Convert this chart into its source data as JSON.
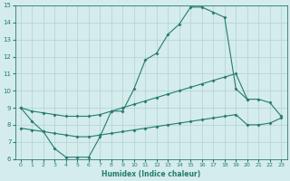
{
  "xlabel": "Humidex (Indice chaleur)",
  "s1x": [
    0,
    1,
    2,
    3,
    4,
    5,
    6,
    7,
    8,
    9,
    10,
    11,
    12,
    13,
    14,
    15,
    16,
    17,
    18,
    19,
    20
  ],
  "s1y": [
    9.0,
    8.2,
    7.6,
    6.6,
    6.1,
    6.1,
    6.1,
    7.3,
    8.8,
    8.8,
    10.1,
    11.8,
    12.2,
    13.3,
    13.9,
    14.9,
    14.9,
    14.6,
    14.3,
    10.1,
    9.5
  ],
  "s2x": [
    0,
    1,
    2,
    3,
    4,
    5,
    6,
    7,
    8,
    9,
    10,
    11,
    12,
    13,
    14,
    15,
    16,
    17,
    18,
    19,
    20,
    21,
    22,
    23
  ],
  "s2y": [
    9.0,
    8.8,
    8.7,
    8.6,
    8.5,
    8.5,
    8.5,
    8.6,
    8.8,
    9.0,
    9.2,
    9.4,
    9.6,
    9.8,
    10.0,
    10.2,
    10.4,
    10.6,
    10.8,
    11.0,
    9.5,
    9.5,
    9.3,
    8.5
  ],
  "s3x": [
    0,
    1,
    2,
    3,
    4,
    5,
    6,
    7,
    8,
    9,
    10,
    11,
    12,
    13,
    14,
    15,
    16,
    17,
    18,
    19,
    20,
    21,
    22,
    23
  ],
  "s3y": [
    7.8,
    7.7,
    7.6,
    7.5,
    7.4,
    7.3,
    7.3,
    7.4,
    7.5,
    7.6,
    7.7,
    7.8,
    7.9,
    8.0,
    8.1,
    8.2,
    8.3,
    8.4,
    8.5,
    8.6,
    8.0,
    8.0,
    8.1,
    8.4
  ],
  "color": "#267b6e",
  "bg_color": "#d4ecec",
  "grid_color": "#b2d0d0",
  "ylim": [
    6,
    15
  ],
  "xlim_min": -0.5,
  "xlim_max": 23.5,
  "yticks": [
    6,
    7,
    8,
    9,
    10,
    11,
    12,
    13,
    14,
    15
  ],
  "xticks": [
    0,
    1,
    2,
    3,
    4,
    5,
    6,
    7,
    8,
    9,
    10,
    11,
    12,
    13,
    14,
    15,
    16,
    17,
    18,
    19,
    20,
    21,
    22,
    23
  ]
}
